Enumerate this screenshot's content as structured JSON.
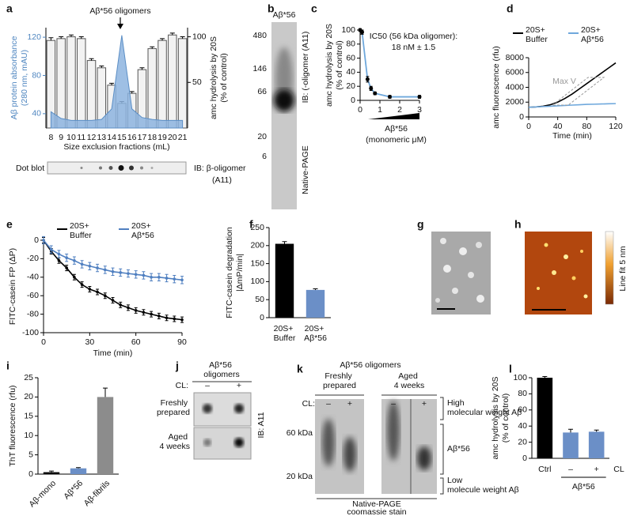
{
  "chart_data": [
    {
      "panel": "a",
      "type": "bar",
      "title": "Aβ*56 oligomers",
      "categories": [
        "8",
        "9",
        "10",
        "11",
        "12",
        "13",
        "14",
        "15",
        "16",
        "17",
        "18",
        "19",
        "20",
        "21"
      ],
      "series": [
        {
          "type": "bar",
          "axis": "y2",
          "color": "#f2f2f2",
          "outline": "#555555",
          "values": [
            96,
            98,
            100,
            98,
            74,
            66,
            47,
            27,
            38,
            64,
            87,
            96,
            102,
            98
          ],
          "errors": [
            3,
            2,
            2,
            2,
            2,
            2,
            2,
            2,
            2,
            2,
            2,
            2,
            2,
            2
          ]
        },
        {
          "type": "area",
          "axis": "y",
          "color": "#8db4df",
          "values": [
            42,
            35,
            33,
            33,
            33,
            34,
            45,
            122,
            45,
            36,
            34,
            33,
            33,
            33
          ]
        }
      ],
      "ylim": [
        25,
        130
      ],
      "yticks": [
        40,
        80,
        120
      ],
      "y_color": "#4f86c0",
      "y2lim": [
        0,
        110
      ],
      "y2ticks": [
        50,
        100
      ],
      "ylabel": [
        "Aβ protein absorbance",
        "(280 nm, mAU)"
      ],
      "y2label": [
        "amc hydrolysis by 20S",
        "(% of control)"
      ],
      "xlabel": "Size exclusion fractions (mL)",
      "dot_blot": {
        "label": "Dot blot",
        "antibody": [
          "IB: β-oligomer",
          "(A11)"
        ]
      }
    },
    {
      "panel": "c",
      "type": "line",
      "x": [
        0,
        0.1,
        0.375,
        0.55,
        0.75,
        1.5,
        3
      ],
      "values": [
        100,
        97,
        30,
        17,
        10,
        5,
        5
      ],
      "errors": [
        2,
        3,
        4,
        3,
        2,
        2,
        2
      ],
      "color": "#6fa8dc",
      "markers": true,
      "marker_color": "#000000",
      "xlim": [
        0,
        3
      ],
      "xticks": [
        0,
        1,
        2,
        3
      ],
      "ylim": [
        0,
        100
      ],
      "yticks": [
        0,
        20,
        40,
        60,
        80,
        100
      ],
      "ylabel": [
        "amc hydrolysis by 20S",
        "(% of control)"
      ],
      "xlabel": [
        "Aβ*56",
        "(monomeric μM)"
      ],
      "annotation": [
        "IC50 (56 kDa oligomer):",
        "18 nM ± 1.5"
      ]
    },
    {
      "panel": "d",
      "type": "line",
      "x": [
        0,
        10,
        20,
        30,
        40,
        50,
        60,
        70,
        80,
        90,
        100,
        110,
        120
      ],
      "series": [
        {
          "name": "20S+ Buffer",
          "color": "#000000",
          "values": [
            1300,
            1350,
            1450,
            1650,
            2000,
            2500,
            3100,
            3800,
            4500,
            5200,
            5900,
            6600,
            7300
          ]
        },
        {
          "name": "20S+ Aβ*56",
          "color": "#6fa8dc",
          "values": [
            1300,
            1350,
            1400,
            1450,
            1500,
            1550,
            1600,
            1650,
            1700,
            1720,
            1750,
            1780,
            1800
          ]
        }
      ],
      "markers": false,
      "xlim": [
        0,
        120
      ],
      "xticks": [
        0,
        40,
        80,
        120
      ],
      "ylim": [
        0,
        8000
      ],
      "yticks": [
        0,
        2000,
        4000,
        6000,
        8000
      ],
      "ylabel": "amc fluorescence (rfu)",
      "xlabel": "Time (min)",
      "annotation": "Max V"
    },
    {
      "panel": "e",
      "type": "line",
      "x": [
        0,
        5,
        10,
        15,
        20,
        25,
        30,
        35,
        40,
        45,
        50,
        55,
        60,
        65,
        70,
        75,
        80,
        85,
        90
      ],
      "series": [
        {
          "name": "20S+ Buffer",
          "color": "#000000",
          "values": [
            0,
            -12,
            -22,
            -30,
            -40,
            -48,
            -53,
            -56,
            -60,
            -65,
            -70,
            -73,
            -76,
            -78,
            -80,
            -82,
            -84,
            -85,
            -86
          ],
          "errors": [
            3,
            3,
            3,
            3,
            3,
            3,
            3,
            3,
            3,
            3,
            3,
            3,
            3,
            3,
            3,
            3,
            3,
            3,
            3
          ]
        },
        {
          "name": "20S+ Aβ*56",
          "color": "#4f7fc0",
          "values": [
            0,
            -10,
            -15,
            -19,
            -22,
            -26,
            -28,
            -30,
            -32,
            -34,
            -35,
            -36,
            -37,
            -38,
            -40,
            -40,
            -41,
            -42,
            -43
          ],
          "errors": [
            4,
            4,
            4,
            4,
            4,
            4,
            4,
            4,
            4,
            4,
            4,
            4,
            4,
            4,
            4,
            4,
            4,
            4,
            4
          ]
        }
      ],
      "markers": true,
      "xlim": [
        0,
        90
      ],
      "xticks": [
        0,
        30,
        60,
        90
      ],
      "ylim": [
        -100,
        0
      ],
      "yticks": [
        -100,
        -80,
        -60,
        -40,
        -20,
        0
      ],
      "ylabel": "FITC-casein FP (ΔP)",
      "xlabel": "Time (min)"
    },
    {
      "panel": "f",
      "type": "bar",
      "categories": [
        "20S+ Buffer",
        "20S+ Aβ*56"
      ],
      "values": [
        205,
        77
      ],
      "errors": [
        6,
        3
      ],
      "colors": [
        "#000000",
        "#6b8fc7"
      ],
      "ylim": [
        0,
        250
      ],
      "yticks": [
        0,
        50,
        100,
        150,
        200,
        250
      ],
      "ylabel": [
        "FITC-casein degradation",
        "|ΔmP/min|"
      ]
    },
    {
      "panel": "i",
      "type": "bar",
      "categories": [
        "Aβ-mono",
        "Aβ*56",
        "Aβ-fibrils"
      ],
      "values": [
        0.5,
        1.5,
        20
      ],
      "errors": [
        0.3,
        0.2,
        2.3
      ],
      "colors": [
        "#000000",
        "#6b8fc7",
        "#8c8c8c"
      ],
      "ylim": [
        0,
        25
      ],
      "yticks": [
        0,
        5,
        10,
        15,
        20,
        25
      ],
      "ylabel": "ThT fluorescence (rfu)"
    },
    {
      "panel": "l",
      "type": "bar",
      "categories": [
        "Ctrl",
        "–",
        "+"
      ],
      "values": [
        100,
        32,
        33
      ],
      "errors": [
        1.5,
        4,
        2
      ],
      "colors": [
        "#000000",
        "#6b8fc7",
        "#6b8fc7"
      ],
      "ylim": [
        0,
        100
      ],
      "yticks": [
        0,
        20,
        40,
        60,
        80,
        100
      ],
      "ylabel": [
        "amc hydrolysis by 20S",
        "(% of control)"
      ],
      "group": "Aβ*56",
      "category_title": "CL"
    }
  ],
  "blot_b": {
    "panel": "b",
    "lane": "Aβ*56",
    "markers": [
      480,
      146,
      66,
      20,
      6
    ],
    "labels": [
      "IB: (-oligomer (A11)",
      "Native-PAGE"
    ]
  },
  "image_g": {
    "panel": "g"
  },
  "image_h": {
    "panel": "h",
    "colorbar_label": "Line fit 5 nm"
  },
  "blot_j": {
    "panel": "j",
    "title": "Aβ*56 oligomers",
    "cl_label": "CL:",
    "lanes": [
      "–",
      "+"
    ],
    "rows": [
      "Freshly prepared",
      "Aged 4 weeks"
    ],
    "antibody": "IB: A11"
  },
  "gel_k": {
    "panel": "k",
    "title": "Aβ*56 oligomers",
    "groups": [
      "Freshly prepared",
      "Aged 4 weeks"
    ],
    "cl_label": "CL:",
    "lanes": [
      "–",
      "+",
      "–",
      "+"
    ],
    "markers": [
      "60 kDa",
      "20 kDa"
    ],
    "bands": [
      "High molecular weight Aβ",
      "Aβ*56",
      "Low molecule weight Aβ"
    ],
    "stain": [
      "Native-PAGE",
      "coomassie stain"
    ]
  }
}
